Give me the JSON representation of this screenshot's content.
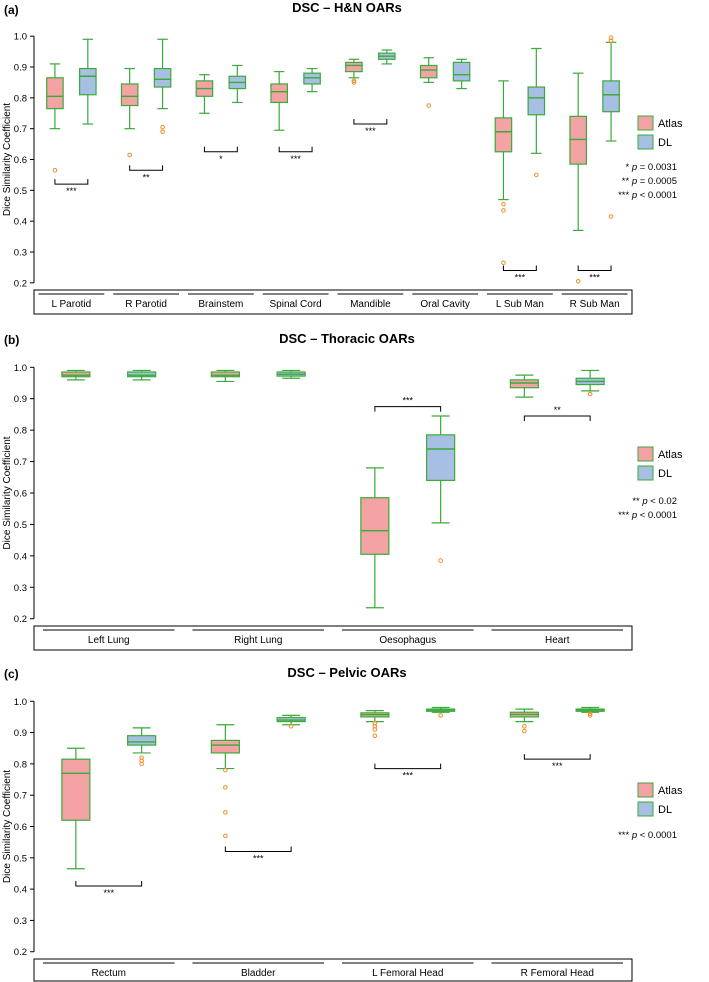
{
  "colors": {
    "atlas_fill": "#f4a3a5",
    "dl_fill": "#a7bfe2",
    "box_stroke": "#3aaa3a",
    "outlier": "#f28c28",
    "axis": "#000000"
  },
  "legend_labels": [
    "Atlas",
    "DL"
  ],
  "chart_data": [
    {
      "type": "boxplot",
      "panel": "(a)",
      "title": "DSC – H&N OARs",
      "ylabel": "Dice Similarity Coefficient",
      "ylim": [
        0.18,
        1.02
      ],
      "yticks": [
        "0.2",
        "0.3",
        "0.4",
        "0.5",
        "0.6",
        "0.7",
        "0.8",
        "0.9",
        "1.0"
      ],
      "categories": [
        "L Parotid",
        "R Parotid",
        "Brainstem",
        "Spinal Cord",
        "Mandible",
        "Oral Cavity",
        "L Sub Man",
        "R Sub Man"
      ],
      "series": [
        {
          "name": "Atlas",
          "boxes": [
            {
              "min": 0.7,
              "q1": 0.765,
              "median": 0.805,
              "q3": 0.865,
              "max": 0.91,
              "outliers": [
                0.565
              ]
            },
            {
              "min": 0.7,
              "q1": 0.775,
              "median": 0.805,
              "q3": 0.845,
              "max": 0.895,
              "outliers": [
                0.615
              ]
            },
            {
              "min": 0.75,
              "q1": 0.805,
              "median": 0.83,
              "q3": 0.855,
              "max": 0.875,
              "outliers": []
            },
            {
              "min": 0.695,
              "q1": 0.785,
              "median": 0.82,
              "q3": 0.845,
              "max": 0.885,
              "outliers": []
            },
            {
              "min": 0.865,
              "q1": 0.885,
              "median": 0.905,
              "q3": 0.915,
              "max": 0.925,
              "outliers": [
                0.855,
                0.85
              ]
            },
            {
              "min": 0.85,
              "q1": 0.865,
              "median": 0.89,
              "q3": 0.905,
              "max": 0.93,
              "outliers": [
                0.775
              ]
            },
            {
              "min": 0.47,
              "q1": 0.625,
              "median": 0.69,
              "q3": 0.735,
              "max": 0.855,
              "outliers": [
                0.455,
                0.435,
                0.265
              ]
            },
            {
              "min": 0.37,
              "q1": 0.585,
              "median": 0.665,
              "q3": 0.74,
              "max": 0.88,
              "outliers": [
                0.205
              ]
            }
          ]
        },
        {
          "name": "DL",
          "boxes": [
            {
              "min": 0.715,
              "q1": 0.81,
              "median": 0.87,
              "q3": 0.895,
              "max": 0.99,
              "outliers": []
            },
            {
              "min": 0.765,
              "q1": 0.835,
              "median": 0.86,
              "q3": 0.895,
              "max": 0.99,
              "outliers": [
                0.705,
                0.69
              ]
            },
            {
              "min": 0.785,
              "q1": 0.83,
              "median": 0.85,
              "q3": 0.87,
              "max": 0.905,
              "outliers": []
            },
            {
              "min": 0.82,
              "q1": 0.845,
              "median": 0.865,
              "q3": 0.88,
              "max": 0.895,
              "outliers": []
            },
            {
              "min": 0.91,
              "q1": 0.925,
              "median": 0.935,
              "q3": 0.945,
              "max": 0.955,
              "outliers": []
            },
            {
              "min": 0.83,
              "q1": 0.855,
              "median": 0.875,
              "q3": 0.915,
              "max": 0.925,
              "outliers": []
            },
            {
              "min": 0.62,
              "q1": 0.745,
              "median": 0.8,
              "q3": 0.835,
              "max": 0.96,
              "outliers": [
                0.55
              ]
            },
            {
              "min": 0.66,
              "q1": 0.755,
              "median": 0.81,
              "q3": 0.855,
              "max": 0.98,
              "outliers": [
                0.995,
                0.985,
                0.415
              ]
            }
          ]
        }
      ],
      "significance": [
        {
          "category": "L Parotid",
          "label": "***",
          "y": 0.52
        },
        {
          "category": "R Parotid",
          "label": "**",
          "y": 0.565
        },
        {
          "category": "Brainstem",
          "label": "*",
          "y": 0.625
        },
        {
          "category": "Spinal Cord",
          "label": "***",
          "y": 0.625
        },
        {
          "category": "Mandible",
          "label": "***",
          "y": 0.715
        },
        {
          "category": "L Sub Man",
          "label": "***",
          "y": 0.24
        },
        {
          "category": "R Sub Man",
          "label": "***",
          "y": 0.24
        }
      ],
      "pvalue_notes": [
        {
          "stars": "*",
          "op": "=",
          "value": "0.0031"
        },
        {
          "stars": "**",
          "op": "=",
          "value": "0.0005"
        },
        {
          "stars": "***",
          "op": "<",
          "value": "0.0001"
        }
      ]
    },
    {
      "type": "boxplot",
      "panel": "(b)",
      "title": "DSC – Thoracic OARs",
      "ylabel": "Dice Similarity Coefficient",
      "ylim": [
        0.18,
        1.02
      ],
      "yticks": [
        "0.2",
        "0.3",
        "0.4",
        "0.5",
        "0.6",
        "0.7",
        "0.8",
        "0.9",
        "1.0"
      ],
      "categories": [
        "Left Lung",
        "Right Lung",
        "Oesophagus",
        "Heart"
      ],
      "series": [
        {
          "name": "Atlas",
          "boxes": [
            {
              "min": 0.96,
              "q1": 0.97,
              "median": 0.975,
              "q3": 0.985,
              "max": 0.99,
              "outliers": []
            },
            {
              "min": 0.955,
              "q1": 0.97,
              "median": 0.975,
              "q3": 0.985,
              "max": 0.99,
              "outliers": []
            },
            {
              "min": 0.235,
              "q1": 0.405,
              "median": 0.48,
              "q3": 0.585,
              "max": 0.68,
              "outliers": []
            },
            {
              "min": 0.905,
              "q1": 0.935,
              "median": 0.95,
              "q3": 0.96,
              "max": 0.975,
              "outliers": []
            }
          ]
        },
        {
          "name": "DL",
          "boxes": [
            {
              "min": 0.96,
              "q1": 0.97,
              "median": 0.975,
              "q3": 0.985,
              "max": 0.99,
              "outliers": []
            },
            {
              "min": 0.965,
              "q1": 0.972,
              "median": 0.978,
              "q3": 0.985,
              "max": 0.99,
              "outliers": []
            },
            {
              "min": 0.505,
              "q1": 0.64,
              "median": 0.74,
              "q3": 0.785,
              "max": 0.845,
              "outliers": [
                0.385
              ]
            },
            {
              "min": 0.925,
              "q1": 0.945,
              "median": 0.955,
              "q3": 0.965,
              "max": 0.99,
              "outliers": [
                0.915
              ]
            }
          ]
        }
      ],
      "significance": [
        {
          "category": "Oesophagus",
          "label": "***",
          "y": 0.875
        },
        {
          "category": "Heart",
          "label": "**",
          "y": 0.845
        }
      ],
      "pvalue_notes": [
        {
          "stars": "**",
          "op": "<",
          "value": "0.02"
        },
        {
          "stars": "***",
          "op": "<",
          "value": "0.0001"
        }
      ]
    },
    {
      "type": "boxplot",
      "panel": "(c)",
      "title": "DSC – Pelvic OARs",
      "ylabel": "Dice Similarity Coefficient",
      "ylim": [
        0.18,
        1.02
      ],
      "yticks": [
        "0.2",
        "0.3",
        "0.4",
        "0.5",
        "0.6",
        "0.7",
        "0.8",
        "0.9",
        "1.0"
      ],
      "categories": [
        "Rectum",
        "Bladder",
        "L Femoral Head",
        "R Femoral Head"
      ],
      "series": [
        {
          "name": "Atlas",
          "boxes": [
            {
              "min": 0.465,
              "q1": 0.62,
              "median": 0.77,
              "q3": 0.815,
              "max": 0.85,
              "outliers": []
            },
            {
              "min": 0.785,
              "q1": 0.835,
              "median": 0.86,
              "q3": 0.875,
              "max": 0.925,
              "outliers": [
                0.78,
                0.725,
                0.645,
                0.57
              ]
            },
            {
              "min": 0.935,
              "q1": 0.95,
              "median": 0.957,
              "q3": 0.963,
              "max": 0.97,
              "outliers": [
                0.93,
                0.92,
                0.91,
                0.89
              ]
            },
            {
              "min": 0.935,
              "q1": 0.95,
              "median": 0.958,
              "q3": 0.965,
              "max": 0.975,
              "outliers": [
                0.92,
                0.905
              ]
            }
          ]
        },
        {
          "name": "DL",
          "boxes": [
            {
              "min": 0.835,
              "q1": 0.86,
              "median": 0.87,
              "q3": 0.89,
              "max": 0.915,
              "outliers": [
                0.82,
                0.81,
                0.8
              ]
            },
            {
              "min": 0.925,
              "q1": 0.935,
              "median": 0.94,
              "q3": 0.948,
              "max": 0.955,
              "outliers": [
                0.92
              ]
            },
            {
              "min": 0.965,
              "q1": 0.968,
              "median": 0.972,
              "q3": 0.975,
              "max": 0.98,
              "outliers": [
                0.955
              ]
            },
            {
              "min": 0.965,
              "q1": 0.968,
              "median": 0.972,
              "q3": 0.975,
              "max": 0.98,
              "outliers": [
                0.96,
                0.955
              ]
            }
          ]
        }
      ],
      "significance": [
        {
          "category": "Rectum",
          "label": "***",
          "y": 0.41
        },
        {
          "category": "Bladder",
          "label": "***",
          "y": 0.52
        },
        {
          "category": "L Femoral Head",
          "label": "***",
          "y": 0.785
        },
        {
          "category": "R Femoral Head",
          "label": "***",
          "y": 0.815
        }
      ],
      "pvalue_notes": [
        {
          "stars": "***",
          "op": "<",
          "value": "0.0001"
        }
      ]
    }
  ]
}
